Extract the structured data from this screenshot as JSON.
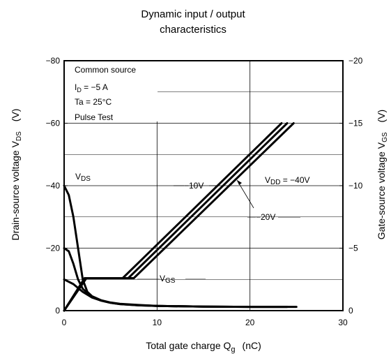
{
  "chart_data": {
    "type": "line",
    "title_lines": [
      "Dynamic input / output",
      "characteristics"
    ],
    "xlabel": "Total gate charge  Q",
    "xlabel_sub": "g",
    "xlabel_unit": "(nC)",
    "ylabel_left": "Drain-source voltage   V",
    "ylabel_left_sub": "DS",
    "ylabel_left_unit": "(V)",
    "ylabel_right": "Gate-source voltage   V",
    "ylabel_right_sub": "GS",
    "ylabel_right_unit": "(V)",
    "xlim": [
      0,
      30
    ],
    "ylim_left": [
      0,
      -80
    ],
    "ylim_right": [
      0,
      -20
    ],
    "x_ticks": [
      "0",
      "10",
      "20",
      "30"
    ],
    "y_left_ticks": [
      "0",
      "−20",
      "−40",
      "−60",
      "−80"
    ],
    "y_right_ticks": [
      "0",
      "−5",
      "−10",
      "−15",
      "−20"
    ],
    "grid": true,
    "conditions": {
      "line1": "Common source",
      "line2_main": "I",
      "line2_sub": "D",
      "line2_rest": " = −5 A",
      "line3": "Ta = 25°C",
      "line4": "Pulse Test"
    },
    "labels": {
      "vds_main": "V",
      "vds_sub": "DS",
      "vgs_main": "V",
      "vgs_sub": "GS",
      "vdd_main": "V",
      "vdd_sub": "DD",
      "vdd_rest": " = −40V",
      "m10": "−10V",
      "m20": "−20V"
    },
    "series": [
      {
        "name": "−40V",
        "curve": "VDS",
        "points": [
          [
            0,
            -40
          ],
          [
            0.5,
            -37
          ],
          [
            1,
            -30
          ],
          [
            1.5,
            -20
          ],
          [
            2,
            -10
          ],
          [
            2.5,
            -6
          ],
          [
            3,
            -4.6
          ],
          [
            4,
            -3.3
          ],
          [
            5,
            -2.6
          ],
          [
            6,
            -2.2
          ],
          [
            8,
            -1.8
          ],
          [
            10,
            -1.5
          ],
          [
            15,
            -1.3
          ],
          [
            20,
            -1.2
          ],
          [
            25,
            -1.2
          ]
        ]
      },
      {
        "name": "−20V",
        "curve": "VDS",
        "points": [
          [
            0,
            -20
          ],
          [
            0.5,
            -19
          ],
          [
            1,
            -15
          ],
          [
            1.5,
            -10
          ],
          [
            2,
            -7
          ],
          [
            3,
            -4.4
          ],
          [
            4,
            -3.2
          ],
          [
            5,
            -2.5
          ],
          [
            6,
            -2.1
          ],
          [
            8,
            -1.7
          ],
          [
            10,
            -1.5
          ],
          [
            15,
            -1.3
          ],
          [
            20,
            -1.2
          ],
          [
            24,
            -1.2
          ]
        ]
      },
      {
        "name": "−10V",
        "curve": "VDS",
        "points": [
          [
            0,
            -10
          ],
          [
            1,
            -8.5
          ],
          [
            2,
            -6
          ],
          [
            3,
            -4.2
          ],
          [
            4,
            -3.2
          ],
          [
            5,
            -2.5
          ],
          [
            6,
            -2.1
          ],
          [
            8,
            -1.7
          ],
          [
            10,
            -1.5
          ],
          [
            15,
            -1.3
          ],
          [
            20,
            -1.2
          ],
          [
            24,
            -1.2
          ]
        ]
      },
      {
        "name": "−10V",
        "curve": "VGS",
        "points": [
          [
            0,
            0
          ],
          [
            2.2,
            -2.6
          ],
          [
            6.3,
            -2.6
          ],
          [
            23.4,
            -15
          ]
        ]
      },
      {
        "name": "−20V",
        "curve": "VGS",
        "points": [
          [
            0,
            0
          ],
          [
            2.3,
            -2.6
          ],
          [
            6.9,
            -2.6
          ],
          [
            24.0,
            -15
          ]
        ]
      },
      {
        "name": "−40V",
        "curve": "VGS",
        "points": [
          [
            0,
            0
          ],
          [
            2.4,
            -2.6
          ],
          [
            7.5,
            -2.6
          ],
          [
            24.7,
            -15
          ]
        ]
      }
    ]
  }
}
